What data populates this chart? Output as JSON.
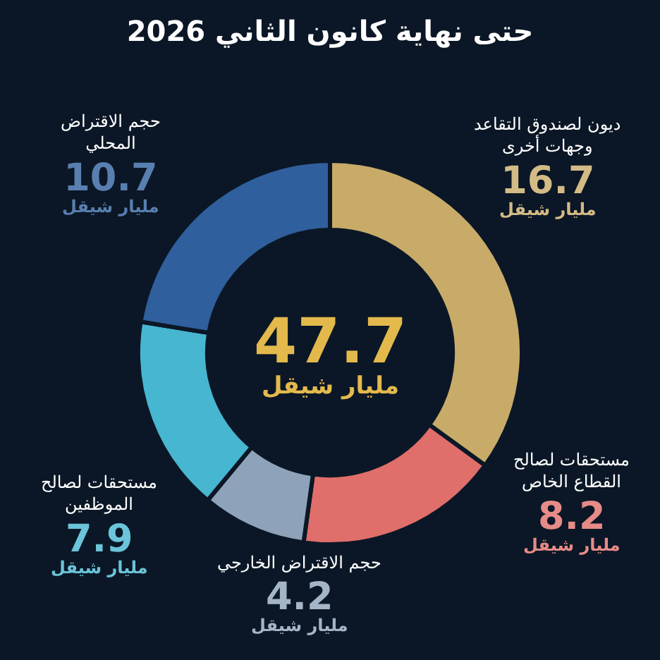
{
  "chart_data": {
    "type": "donut",
    "title": "حتى نهاية كانون الثاني 2026",
    "categories": [
      "ديون لصندوق التقاعد وجهات أخرى",
      "مستحقات لصالح القطاع الخاص",
      "حجم الاقتراض الخارجي",
      "مستحقات لصالح الموظفين",
      "حجم الاقتراض المحلي"
    ],
    "values": [
      16.7,
      8.2,
      4.2,
      7.9,
      10.7
    ],
    "colors": [
      "#c8ab68",
      "#e06e6a",
      "#8ea3b9",
      "#47b6d0",
      "#2f5f9c"
    ],
    "value_labels": [
      "16.7 مليار شيقل",
      "8.2 مليار شيقل",
      "4.2 مليار شيقل",
      "7.9 مليار شيقل",
      "10.7 مليار شيقل"
    ],
    "annotations": [
      "47.7 مليار شيقل"
    ]
  }
}
